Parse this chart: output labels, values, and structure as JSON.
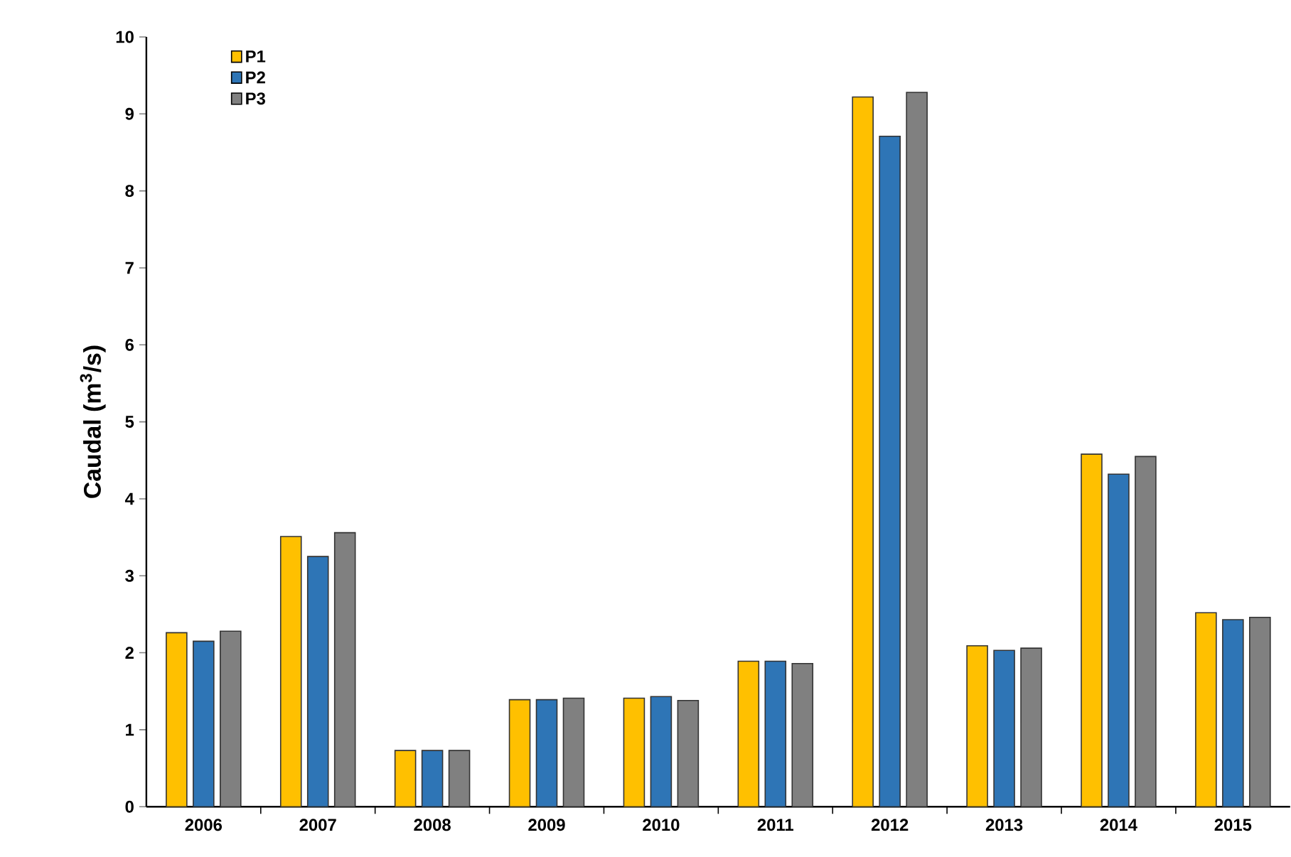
{
  "chart_data": {
    "type": "bar",
    "ylabel": "Caudal (m$^{3}$/s)",
    "categories": [
      "2006",
      "2007",
      "2008",
      "2009",
      "2010",
      "2011",
      "2012",
      "2013",
      "2014",
      "2015"
    ],
    "series": [
      {
        "name": "P1",
        "color": "#ffc000",
        "values": [
          2.26,
          3.51,
          0.73,
          1.39,
          1.41,
          1.89,
          9.22,
          2.09,
          4.58,
          2.52
        ]
      },
      {
        "name": "P2",
        "color": "#2e75b6",
        "values": [
          2.15,
          3.25,
          0.73,
          1.39,
          1.43,
          1.89,
          8.71,
          2.03,
          4.32,
          2.43
        ]
      },
      {
        "name": "P3",
        "color": "#808080",
        "values": [
          2.28,
          3.56,
          0.73,
          1.41,
          1.38,
          1.86,
          9.28,
          2.06,
          4.55,
          2.46
        ]
      }
    ],
    "ylim": [
      0,
      10
    ],
    "yticks": [
      0,
      1,
      2,
      3,
      4,
      5,
      6,
      7,
      8,
      9,
      10
    ],
    "legend": "top left",
    "grid": false
  }
}
